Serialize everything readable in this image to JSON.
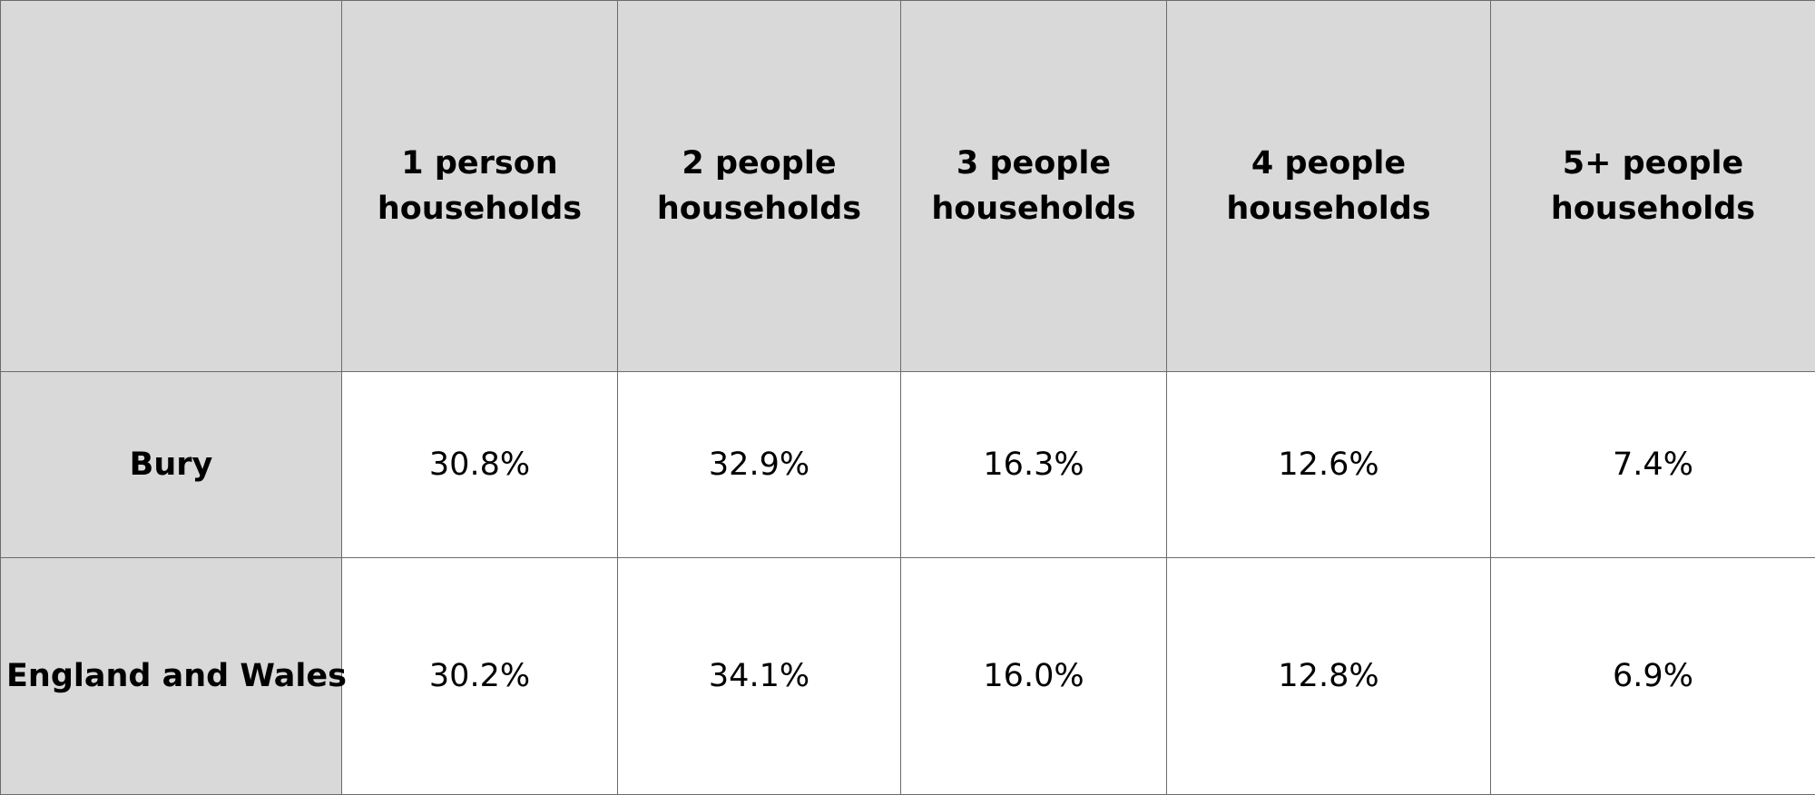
{
  "chart_data": {
    "type": "table",
    "columns": [
      "1 person households",
      "2 people households",
      "3 people households",
      "4 people households",
      "5+ people households"
    ],
    "column_lines": [
      [
        "1 person",
        "households"
      ],
      [
        "2 people",
        "households"
      ],
      [
        "3 people",
        "households"
      ],
      [
        "4 people",
        "households"
      ],
      [
        "5+ people",
        "households"
      ]
    ],
    "rows": [
      {
        "label": "Bury",
        "values": [
          "30.8%",
          "32.9%",
          "16.3%",
          "12.6%",
          "7.4%"
        ]
      },
      {
        "label": "England and Wales",
        "values": [
          "30.2%",
          "34.1%",
          "16.0%",
          "12.8%",
          "6.9%"
        ]
      }
    ]
  },
  "colors": {
    "header_fill": "#d9d9d9",
    "cell_fill": "#ffffff",
    "grid_line": "#6b6b6b",
    "text": "#000000"
  }
}
